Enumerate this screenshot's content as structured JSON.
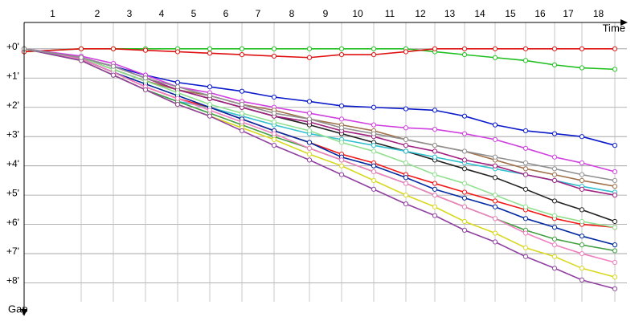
{
  "chart_data": {
    "type": "line",
    "x_label": "Time",
    "y_label": "Gap",
    "laps": [
      "1",
      "2",
      "3",
      "4",
      "5",
      "6",
      "7",
      "8",
      "9",
      "10",
      "11",
      "12",
      "13",
      "14",
      "15",
      "16",
      "17",
      "18"
    ],
    "x": [
      0,
      2.84,
      4.44,
      6.04,
      7.64,
      9.24,
      10.84,
      12.44,
      14.2,
      15.8,
      17.4,
      19,
      20.44,
      21.92,
      23.44,
      24.96,
      26.4,
      27.76,
      29.4
    ],
    "xlim": [
      0,
      30.4
    ],
    "ylim": [
      -0.9,
      9.0
    ],
    "y_inverted": true,
    "yticks": [
      {
        "value": 0,
        "label": "+0'"
      },
      {
        "value": 1,
        "label": "+1'"
      },
      {
        "value": 2,
        "label": "+2'"
      },
      {
        "value": 3,
        "label": "+3'"
      },
      {
        "value": 4,
        "label": "+4'"
      },
      {
        "value": 5,
        "label": "+5'"
      },
      {
        "value": 6,
        "label": "+6'"
      },
      {
        "value": 7,
        "label": "+7'"
      },
      {
        "value": 8,
        "label": "+8'"
      }
    ],
    "grid": true,
    "series": [
      {
        "color": "#1fc01f",
        "values": [
          0.1,
          0,
          0,
          0,
          0,
          0,
          0,
          0,
          0,
          0,
          0,
          0,
          0.1,
          0.2,
          0.3,
          0.4,
          0.55,
          0.65,
          0.7
        ]
      },
      {
        "color": "#e01010",
        "values": [
          0.1,
          0,
          0,
          0.05,
          0.1,
          0.15,
          0.2,
          0.25,
          0.3,
          0.2,
          0.2,
          0.1,
          0,
          0,
          0,
          0,
          0,
          0,
          0
        ]
      },
      {
        "color": "#0a1acb",
        "values": [
          0,
          0.3,
          0.6,
          0.9,
          1.15,
          1.3,
          1.45,
          1.65,
          1.8,
          1.95,
          2.0,
          2.05,
          2.1,
          2.3,
          2.6,
          2.8,
          2.9,
          3.0,
          3.3
        ]
      },
      {
        "color": "#d040e0",
        "values": [
          0,
          0.25,
          0.5,
          0.9,
          1.3,
          1.5,
          1.8,
          2.0,
          2.2,
          2.4,
          2.6,
          2.7,
          2.75,
          2.9,
          3.1,
          3.4,
          3.7,
          3.9,
          4.2
        ]
      },
      {
        "color": "#222222",
        "values": [
          0,
          0.3,
          0.7,
          1.1,
          1.4,
          1.7,
          2.0,
          2.3,
          2.6,
          2.9,
          3.2,
          3.5,
          3.8,
          4.1,
          4.4,
          4.8,
          5.2,
          5.5,
          5.9
        ]
      },
      {
        "color": "#a0704a",
        "values": [
          0,
          0.3,
          0.7,
          1.1,
          1.4,
          1.6,
          1.9,
          2.1,
          2.4,
          2.6,
          2.8,
          3.1,
          3.3,
          3.5,
          3.8,
          4.1,
          4.3,
          4.5,
          4.7
        ]
      },
      {
        "color": "#30c0d0",
        "values": [
          0,
          0.4,
          0.9,
          1.4,
          1.8,
          2.0,
          2.3,
          2.6,
          2.9,
          3.1,
          3.3,
          3.5,
          3.7,
          3.9,
          4.1,
          4.3,
          4.5,
          4.7,
          4.9
        ]
      },
      {
        "color": "#f01818",
        "values": [
          0,
          0.35,
          0.8,
          1.3,
          1.7,
          2.0,
          2.4,
          2.8,
          3.2,
          3.6,
          3.9,
          4.3,
          4.6,
          4.9,
          5.2,
          5.5,
          5.8,
          6.0,
          6.1
        ]
      },
      {
        "color": "#0028a0",
        "values": [
          0,
          0.35,
          0.8,
          1.2,
          1.6,
          2.0,
          2.4,
          2.8,
          3.2,
          3.7,
          4.0,
          4.4,
          4.8,
          5.1,
          5.4,
          5.8,
          6.1,
          6.4,
          6.7
        ]
      },
      {
        "color": "#40a040",
        "values": [
          0,
          0.4,
          0.9,
          1.4,
          1.8,
          2.2,
          2.6,
          3.0,
          3.4,
          3.8,
          4.2,
          4.6,
          5.0,
          5.4,
          5.8,
          6.2,
          6.5,
          6.7,
          6.9
        ]
      },
      {
        "color": "#d8d820",
        "values": [
          0,
          0.4,
          0.9,
          1.4,
          1.9,
          2.3,
          2.7,
          3.1,
          3.6,
          4.0,
          4.5,
          5.0,
          5.4,
          5.9,
          6.3,
          6.8,
          7.1,
          7.5,
          7.8
        ]
      },
      {
        "color": "#f080c0",
        "values": [
          0,
          0.35,
          0.8,
          1.3,
          1.7,
          2.1,
          2.5,
          2.9,
          3.4,
          3.8,
          4.2,
          4.6,
          5.0,
          5.4,
          5.8,
          6.3,
          6.7,
          7.0,
          7.3
        ]
      },
      {
        "color": "#9040a0",
        "values": [
          0,
          0.4,
          0.9,
          1.4,
          1.9,
          2.3,
          2.8,
          3.3,
          3.8,
          4.3,
          4.8,
          5.3,
          5.7,
          6.2,
          6.6,
          7.1,
          7.5,
          7.9,
          8.2
        ]
      },
      {
        "color": "#a02080",
        "values": [
          0,
          0.3,
          0.6,
          1.0,
          1.4,
          1.7,
          2.0,
          2.3,
          2.5,
          2.8,
          3.0,
          3.3,
          3.5,
          3.8,
          4.0,
          4.3,
          4.5,
          4.8,
          5.0
        ]
      },
      {
        "color": "#90e090",
        "values": [
          0,
          0.3,
          0.7,
          1.1,
          1.5,
          1.9,
          2.2,
          2.5,
          2.8,
          3.2,
          3.5,
          3.9,
          4.3,
          4.6,
          5.0,
          5.4,
          5.7,
          5.9,
          6.1
        ]
      },
      {
        "color": "#909090",
        "values": [
          0,
          0.3,
          0.6,
          1.0,
          1.3,
          1.6,
          1.9,
          2.2,
          2.4,
          2.7,
          2.9,
          3.1,
          3.3,
          3.5,
          3.7,
          3.9,
          4.1,
          4.3,
          4.5
        ]
      }
    ]
  }
}
